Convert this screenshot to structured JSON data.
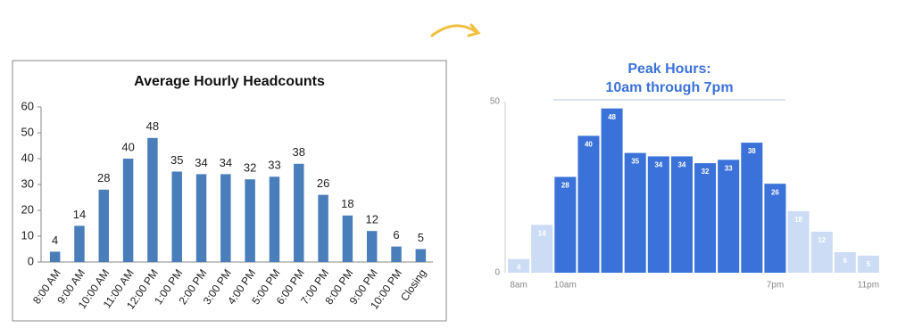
{
  "chart_data": [
    {
      "type": "bar",
      "title": "Average Hourly Headcounts",
      "categories": [
        "8:00 AM",
        "9:00 AM",
        "10:00 AM",
        "11:00 AM",
        "12:00 PM",
        "1:00 PM",
        "2:00 PM",
        "3:00 PM",
        "4:00 PM",
        "5:00 PM",
        "6:00 PM",
        "7:00 PM",
        "8:00 PM",
        "9:00 PM",
        "10:00 PM",
        "Closing"
      ],
      "values": [
        4,
        14,
        28,
        40,
        48,
        35,
        34,
        34,
        32,
        33,
        38,
        26,
        18,
        12,
        6,
        5
      ],
      "color": "#4a7ebb",
      "ylim": [
        0,
        60
      ],
      "yticks": [
        0,
        10,
        20,
        30,
        40,
        50,
        60
      ],
      "grid": false
    },
    {
      "type": "bar",
      "title": "Peak Hours:",
      "subtitle": "10am through 7pm",
      "categories": [
        "8am",
        null,
        "10am",
        null,
        null,
        null,
        null,
        null,
        null,
        null,
        null,
        "7pm",
        null,
        null,
        null,
        "11pm"
      ],
      "values": [
        4,
        14,
        28,
        40,
        48,
        35,
        34,
        34,
        32,
        33,
        38,
        26,
        18,
        12,
        6,
        5
      ],
      "colors": [
        "#cddcf5",
        "#cddcf5",
        "#3b72d9",
        "#3b72d9",
        "#3b72d9",
        "#3b72d9",
        "#3b72d9",
        "#3b72d9",
        "#3b72d9",
        "#3b72d9",
        "#3b72d9",
        "#3b72d9",
        "#cddcf5",
        "#cddcf5",
        "#cddcf5",
        "#cddcf5"
      ],
      "ylim": [
        0,
        50
      ],
      "yticks": [
        0,
        50
      ],
      "grid": false
    }
  ]
}
